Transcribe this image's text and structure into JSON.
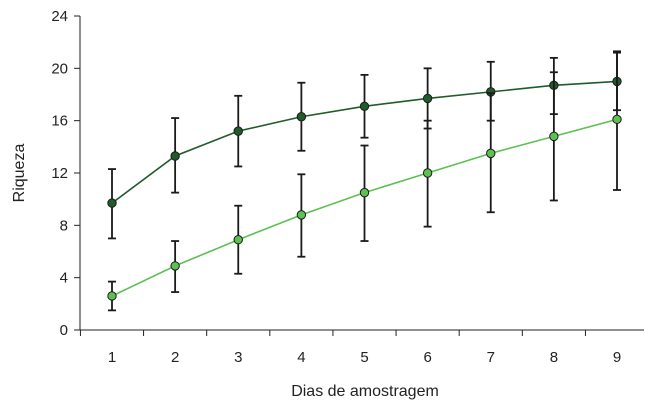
{
  "chart_data": {
    "type": "line",
    "xlabel": "Dias de amostragem",
    "ylabel": "Riqueza",
    "x": [
      1,
      2,
      3,
      4,
      5,
      6,
      7,
      8,
      9
    ],
    "xlim": [
      0.5,
      9.5
    ],
    "ylim": [
      0,
      24
    ],
    "yticks": [
      0,
      4,
      8,
      12,
      16,
      20,
      24
    ],
    "grid": false,
    "series": [
      {
        "color": "#1f5c2a",
        "values": [
          9.7,
          13.3,
          15.2,
          16.3,
          17.1,
          17.7,
          18.2,
          18.7,
          19.0
        ],
        "error_low": [
          7.0,
          10.5,
          12.5,
          13.7,
          14.7,
          15.4,
          16.0,
          16.5,
          16.8
        ],
        "error_high": [
          12.3,
          16.2,
          17.9,
          18.9,
          19.5,
          20.0,
          20.5,
          20.8,
          21.2
        ]
      },
      {
        "color": "#5cc151",
        "values": [
          2.6,
          4.9,
          6.9,
          8.8,
          10.5,
          12.0,
          13.5,
          14.8,
          16.1
        ],
        "error_low": [
          1.5,
          2.9,
          4.3,
          5.6,
          6.8,
          7.9,
          9.0,
          9.9,
          10.7
        ],
        "error_high": [
          3.7,
          6.8,
          9.5,
          11.9,
          14.1,
          16.0,
          18.1,
          19.7,
          21.3
        ]
      }
    ]
  }
}
